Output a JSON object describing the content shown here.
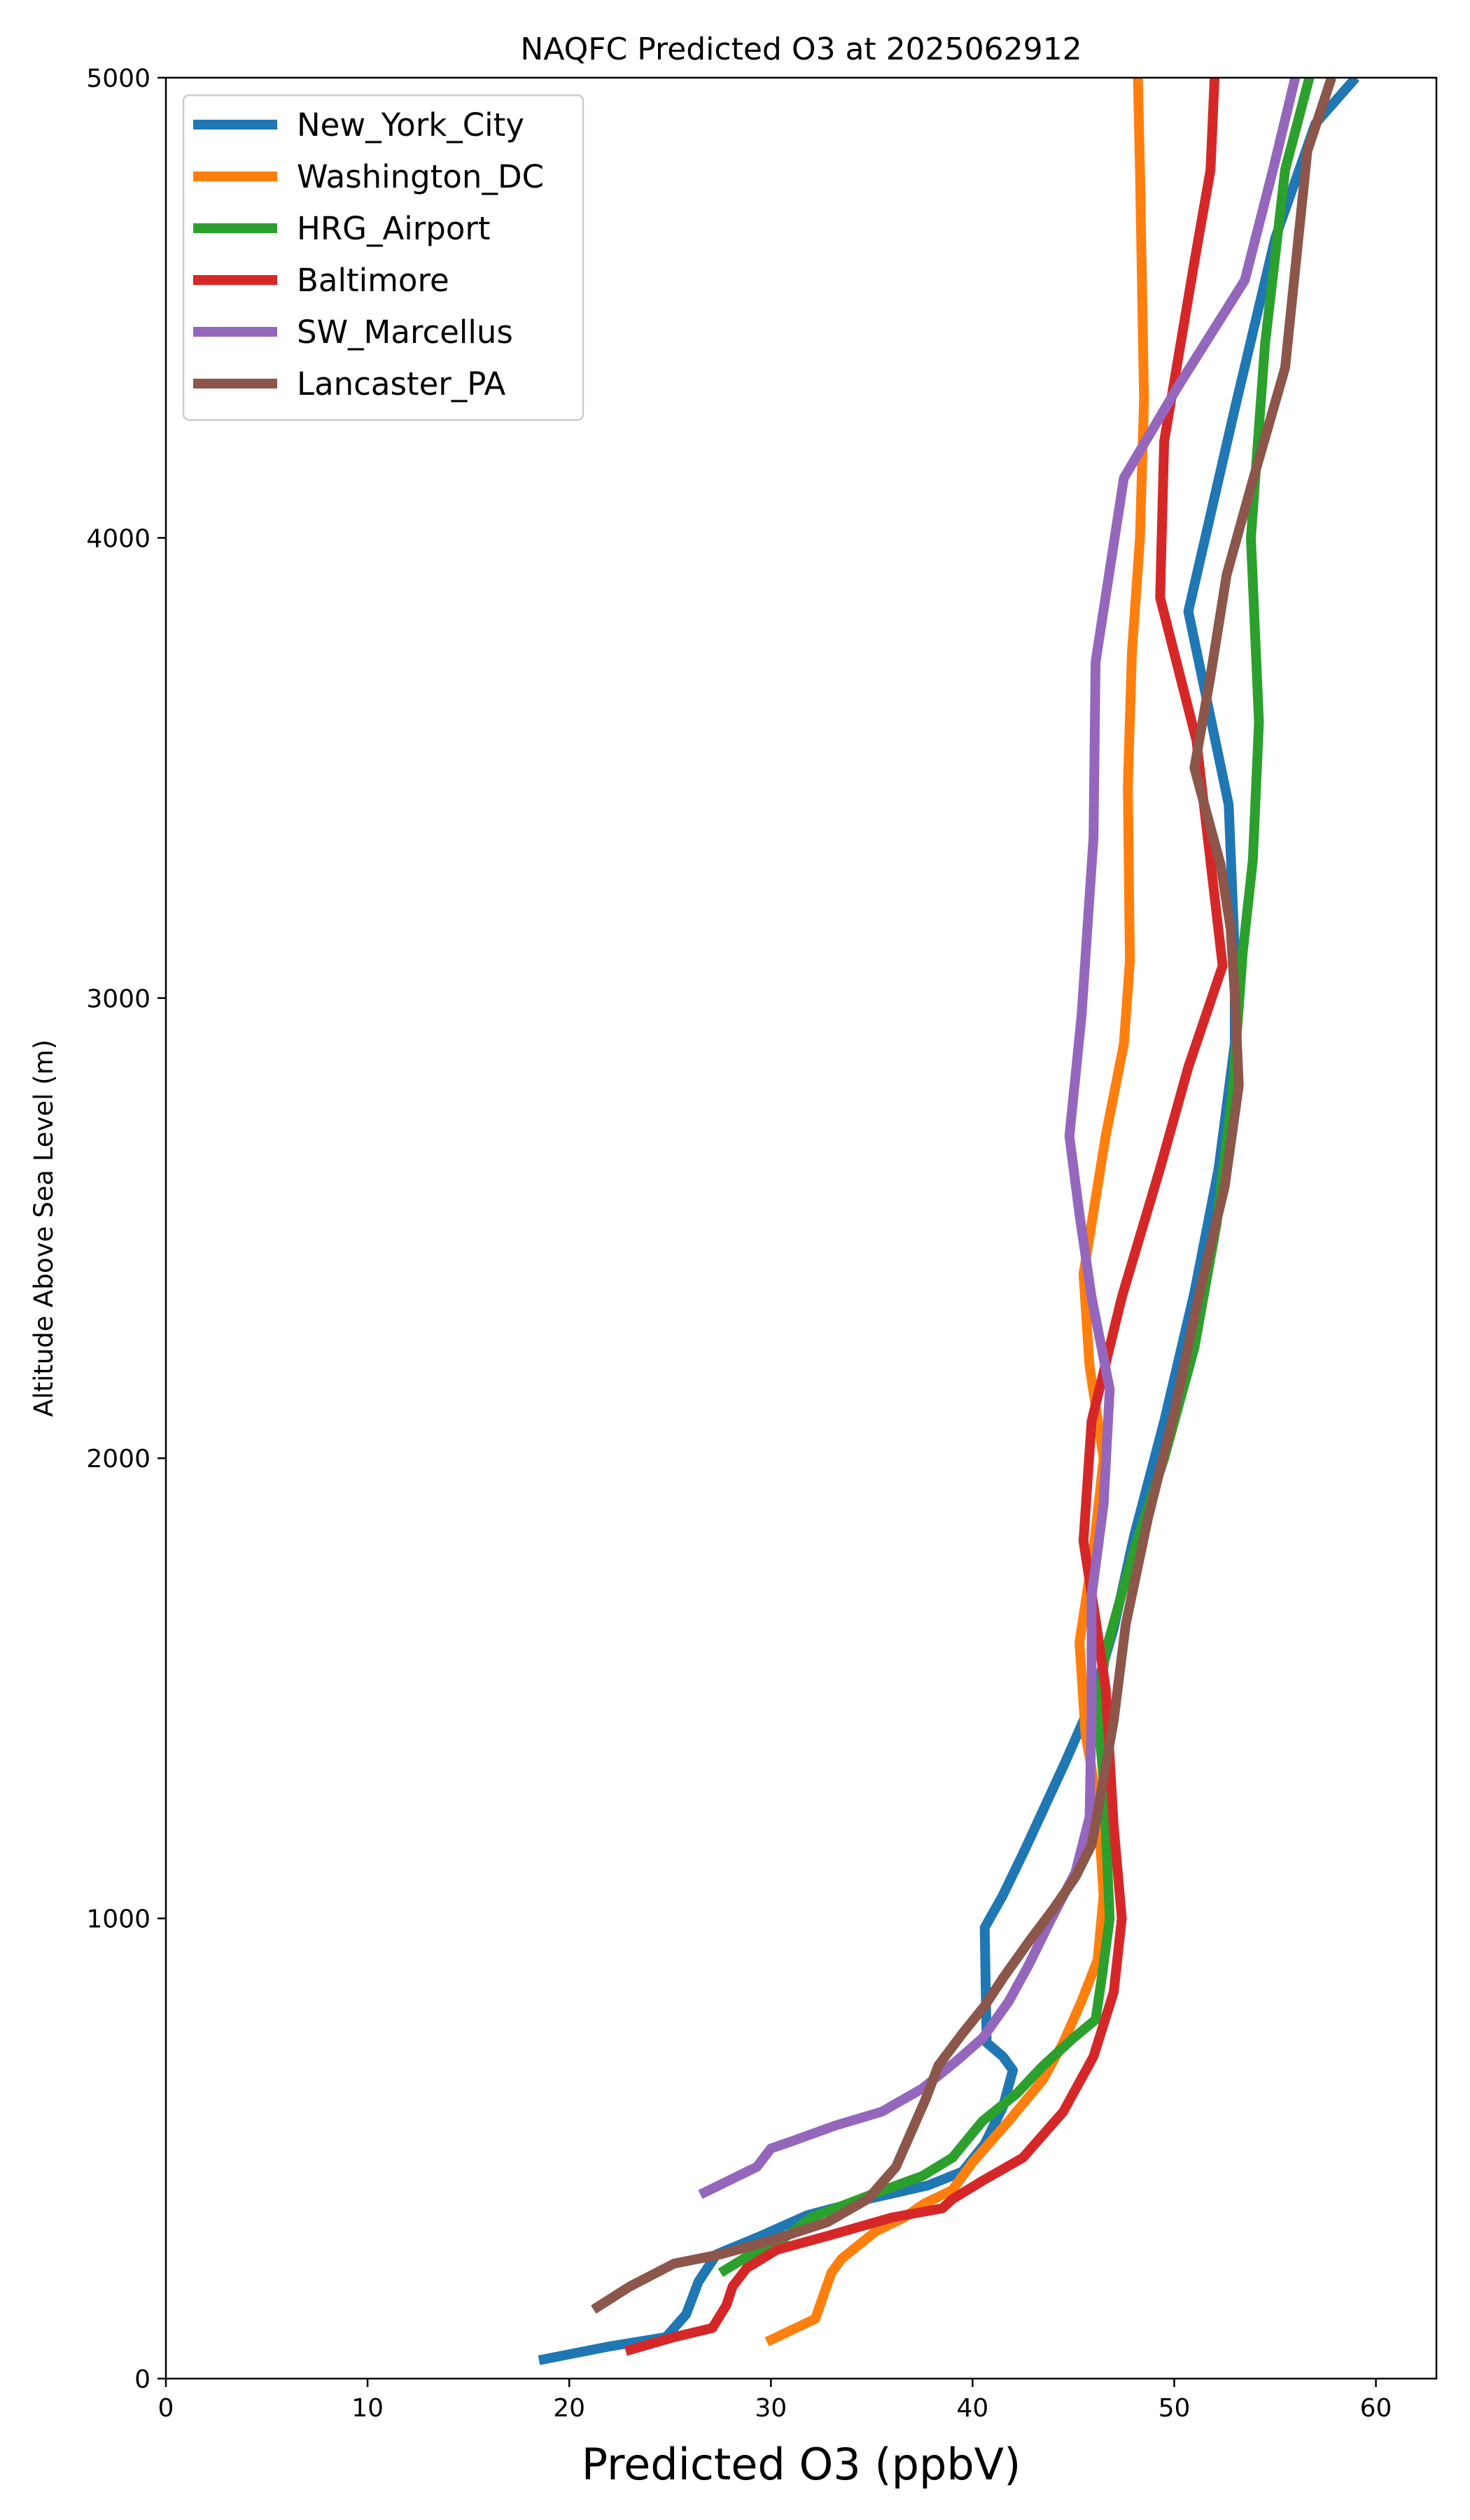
{
  "chart_data": {
    "type": "line",
    "title": "NAQFC Predicted O3 at 2025062912",
    "xlabel": "Predicted O3 (ppbV)",
    "ylabel": "Altitude Above Sea Level (m)",
    "xlim": [
      0,
      63
    ],
    "ylim": [
      0,
      5000
    ],
    "xticks": [
      0,
      10,
      20,
      30,
      40,
      50,
      60
    ],
    "yticks": [
      0,
      1000,
      2000,
      3000,
      4000,
      5000
    ],
    "grid": false,
    "legend_position": "upper-left",
    "series": [
      {
        "name": "New_York_City",
        "color": "#1f77b4",
        "points": [
          [
            18.5,
            40
          ],
          [
            22,
            70
          ],
          [
            24.8,
            90
          ],
          [
            25.8,
            140
          ],
          [
            26.4,
            210
          ],
          [
            27.3,
            270
          ],
          [
            29.5,
            310
          ],
          [
            31.8,
            355
          ],
          [
            34.8,
            390
          ],
          [
            37.8,
            420
          ],
          [
            39.5,
            450
          ],
          [
            40.6,
            510
          ],
          [
            41.5,
            590
          ],
          [
            42.0,
            670
          ],
          [
            41.5,
            700
          ],
          [
            40.7,
            730
          ],
          [
            40.6,
            980
          ],
          [
            41.5,
            1050
          ],
          [
            42.6,
            1150
          ],
          [
            44.6,
            1340
          ],
          [
            46.0,
            1480
          ],
          [
            47.0,
            1630
          ],
          [
            48.0,
            1830
          ],
          [
            49.5,
            2080
          ],
          [
            51.0,
            2360
          ],
          [
            52.2,
            2630
          ],
          [
            53.0,
            2900
          ],
          [
            53.0,
            3100
          ],
          [
            52.7,
            3420
          ],
          [
            50.7,
            3840
          ],
          [
            53.0,
            4280
          ],
          [
            55.0,
            4650
          ],
          [
            57.0,
            4900
          ],
          [
            59.0,
            5000
          ]
        ]
      },
      {
        "name": "Washington_DC",
        "color": "#ff7f0e",
        "points": [
          [
            29.8,
            80
          ],
          [
            32.2,
            130
          ],
          [
            33.0,
            230
          ],
          [
            33.5,
            260
          ],
          [
            35.2,
            320
          ],
          [
            36.6,
            350
          ],
          [
            37.6,
            380
          ],
          [
            39.0,
            410
          ],
          [
            40.0,
            470
          ],
          [
            41.8,
            560
          ],
          [
            43.5,
            650
          ],
          [
            44.5,
            730
          ],
          [
            45.4,
            820
          ],
          [
            46.2,
            910
          ],
          [
            46.5,
            1050
          ],
          [
            46.2,
            1250
          ],
          [
            45.6,
            1400
          ],
          [
            45.3,
            1600
          ],
          [
            46.0,
            1800
          ],
          [
            46.5,
            2000
          ],
          [
            45.8,
            2200
          ],
          [
            45.5,
            2400
          ],
          [
            46.6,
            2700
          ],
          [
            47.5,
            2900
          ],
          [
            47.8,
            3080
          ],
          [
            47.7,
            3460
          ],
          [
            47.9,
            3750
          ],
          [
            48.3,
            4000
          ],
          [
            48.5,
            4300
          ],
          [
            48.3,
            4800
          ],
          [
            48.2,
            5000
          ]
        ]
      },
      {
        "name": "HRG_Airport",
        "color": "#2ca02c",
        "points": [
          [
            27.5,
            230
          ],
          [
            29.0,
            270
          ],
          [
            30.5,
            300
          ],
          [
            32.0,
            350
          ],
          [
            35.0,
            400
          ],
          [
            37.5,
            440
          ],
          [
            39.0,
            480
          ],
          [
            40.5,
            560
          ],
          [
            42.2,
            620
          ],
          [
            43.5,
            680
          ],
          [
            45.0,
            740
          ],
          [
            46.1,
            780
          ],
          [
            46.4,
            870
          ],
          [
            46.8,
            1000
          ],
          [
            46.5,
            1300
          ],
          [
            46.2,
            1450
          ],
          [
            46.6,
            1580
          ],
          [
            48.0,
            1800
          ],
          [
            49.5,
            2000
          ],
          [
            51.0,
            2240
          ],
          [
            52.1,
            2510
          ],
          [
            52.9,
            2800
          ],
          [
            53.4,
            3100
          ],
          [
            53.9,
            3300
          ],
          [
            54.2,
            3600
          ],
          [
            53.8,
            4000
          ],
          [
            54.5,
            4420
          ],
          [
            55.5,
            4800
          ],
          [
            56.7,
            5000
          ]
        ]
      },
      {
        "name": "Baltimore",
        "color": "#d62728",
        "points": [
          [
            22.8,
            60
          ],
          [
            25.2,
            90
          ],
          [
            27.1,
            110
          ],
          [
            27.8,
            160
          ],
          [
            28.1,
            200
          ],
          [
            28.8,
            240
          ],
          [
            30.3,
            280
          ],
          [
            32.8,
            310
          ],
          [
            36.0,
            350
          ],
          [
            38.5,
            370
          ],
          [
            39.0,
            390
          ],
          [
            40.5,
            430
          ],
          [
            42.5,
            480
          ],
          [
            44.5,
            580
          ],
          [
            46.0,
            700
          ],
          [
            47.0,
            840
          ],
          [
            47.4,
            1000
          ],
          [
            47.0,
            1200
          ],
          [
            46.6,
            1500
          ],
          [
            46.1,
            1650
          ],
          [
            45.5,
            1820
          ],
          [
            45.9,
            2080
          ],
          [
            47.4,
            2350
          ],
          [
            49.3,
            2630
          ],
          [
            50.7,
            2850
          ],
          [
            52.4,
            3070
          ],
          [
            51.1,
            3560
          ],
          [
            49.3,
            3870
          ],
          [
            49.5,
            4210
          ],
          [
            51.0,
            4600
          ],
          [
            51.8,
            4800
          ],
          [
            52.0,
            5000
          ]
        ]
      },
      {
        "name": "SW_Marcellus",
        "color": "#9467bd",
        "points": [
          [
            26.5,
            400
          ],
          [
            29.3,
            460
          ],
          [
            30.0,
            500
          ],
          [
            31.0,
            515
          ],
          [
            33.2,
            550
          ],
          [
            35.5,
            580
          ],
          [
            37.5,
            630
          ],
          [
            39.2,
            690
          ],
          [
            40.5,
            740
          ],
          [
            41.8,
            820
          ],
          [
            42.8,
            900
          ],
          [
            43.8,
            990
          ],
          [
            45.1,
            1100
          ],
          [
            45.8,
            1220
          ],
          [
            45.9,
            1450
          ],
          [
            45.9,
            1700
          ],
          [
            46.5,
            1900
          ],
          [
            46.8,
            2150
          ],
          [
            45.9,
            2350
          ],
          [
            45.3,
            2530
          ],
          [
            44.8,
            2700
          ],
          [
            45.4,
            2960
          ],
          [
            46.0,
            3350
          ],
          [
            46.1,
            3730
          ],
          [
            47.5,
            4130
          ],
          [
            50.2,
            4330
          ],
          [
            53.5,
            4560
          ],
          [
            54.9,
            4800
          ],
          [
            56.0,
            5000
          ]
        ]
      },
      {
        "name": "Lancaster_PA",
        "color": "#8c564b",
        "points": [
          [
            21.2,
            150
          ],
          [
            23.0,
            200
          ],
          [
            25.2,
            250
          ],
          [
            27.5,
            270
          ],
          [
            30.0,
            300
          ],
          [
            32.8,
            340
          ],
          [
            34.8,
            390
          ],
          [
            36.2,
            460
          ],
          [
            37.1,
            550
          ],
          [
            37.7,
            610
          ],
          [
            38.3,
            680
          ],
          [
            39.5,
            750
          ],
          [
            40.6,
            810
          ],
          [
            41.5,
            870
          ],
          [
            42.8,
            950
          ],
          [
            44.0,
            1020
          ],
          [
            45.1,
            1090
          ],
          [
            45.9,
            1160
          ],
          [
            46.2,
            1230
          ],
          [
            47.0,
            1430
          ],
          [
            47.6,
            1640
          ],
          [
            48.7,
            1870
          ],
          [
            50.0,
            2100
          ],
          [
            51.2,
            2350
          ],
          [
            52.5,
            2590
          ],
          [
            53.2,
            2810
          ],
          [
            53.0,
            3010
          ],
          [
            52.8,
            3150
          ],
          [
            52.3,
            3290
          ],
          [
            51.0,
            3500
          ],
          [
            51.8,
            3700
          ],
          [
            52.6,
            3920
          ],
          [
            53.8,
            4110
          ],
          [
            55.5,
            4370
          ],
          [
            56.6,
            4840
          ],
          [
            57.8,
            5000
          ]
        ]
      }
    ]
  }
}
